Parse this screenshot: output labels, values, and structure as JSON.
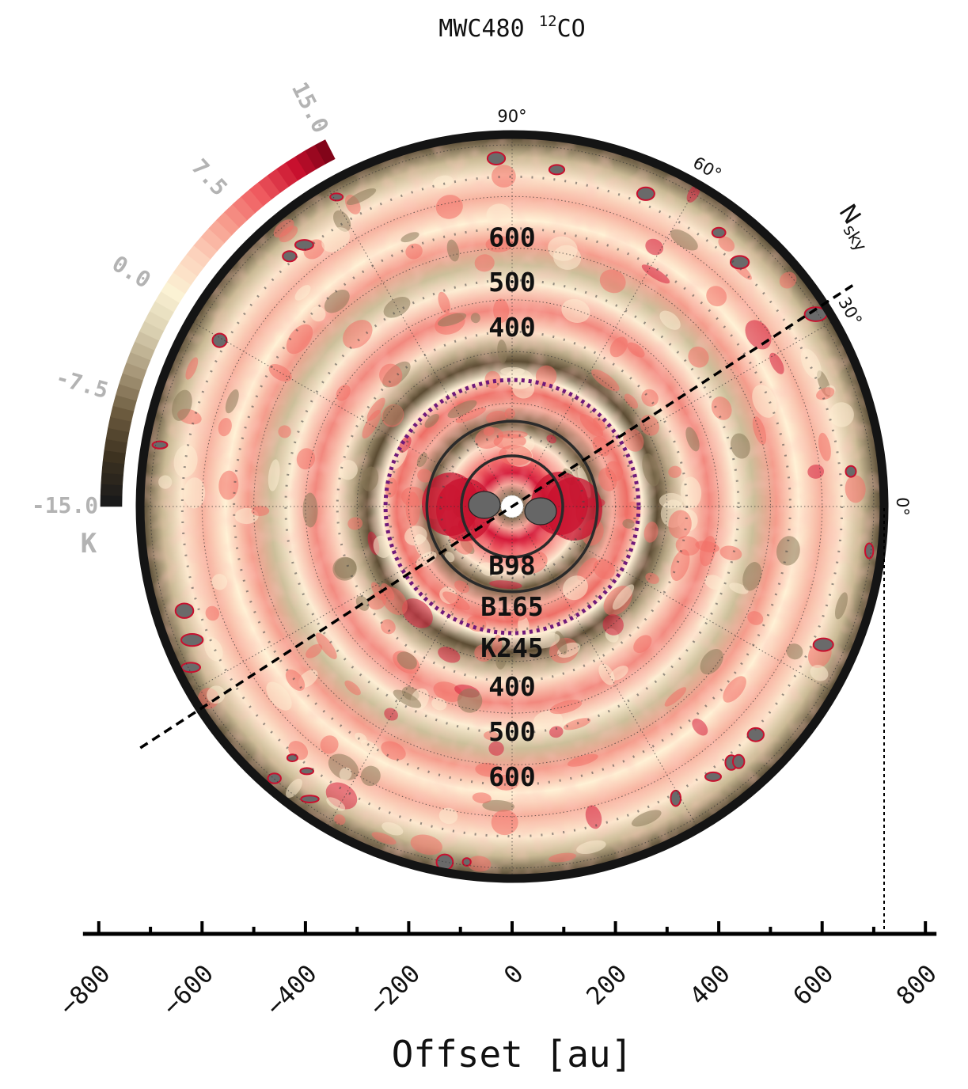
{
  "chart_data": {
    "type": "heatmap",
    "projection": "polar",
    "title": "MWC480 ",
    "title_isotope": "12",
    "title_species": "CO",
    "xlabel": "Offset [au]",
    "x_ticks": [
      -800,
      -600,
      -400,
      -200,
      0,
      200,
      400,
      600,
      800
    ],
    "x_tick_labels": [
      "−800",
      "−600",
      "−400",
      "−200",
      "0",
      "200",
      "400",
      "600",
      "800"
    ],
    "xlim": [
      -800,
      800
    ],
    "disk_radius_au": 720,
    "angle_ticks_deg": [
      0,
      30,
      60,
      90
    ],
    "angle_tick_labels": [
      "0°",
      "30°",
      "60°",
      "90°"
    ],
    "radial_labels_upper": [
      "400",
      "500",
      "600"
    ],
    "radial_labels_lower": [
      "400",
      "500",
      "600"
    ],
    "radial_label_values": [
      400,
      500,
      600
    ],
    "radial_grid_au": [
      100,
      200,
      300,
      400,
      500,
      600,
      700
    ],
    "features": [
      {
        "label": "B98",
        "radius_au": 98,
        "style": "solid"
      },
      {
        "label": "B165",
        "radius_au": 165,
        "style": "solid"
      },
      {
        "label": "K245",
        "radius_au": 245,
        "style": "dotted"
      }
    ],
    "north_label": "N",
    "north_subscript": "sky",
    "north_angle_deg": 33,
    "colorbar": {
      "vmin": -15.0,
      "vmax": 15.0,
      "ticks": [
        -15.0,
        -7.5,
        0.0,
        7.5,
        15.0
      ],
      "tick_labels": [
        "-15.0",
        "-7.5",
        "0.0",
        "7.5",
        "15.0"
      ],
      "unit": "K",
      "colors": [
        "#1a1a1a",
        "#3d3220",
        "#6b5a3e",
        "#a8987a",
        "#d9cfb0",
        "#fbf2d4",
        "#fcd2bc",
        "#f79b8c",
        "#ef5a5f",
        "#c8102e",
        "#6b0012"
      ]
    }
  },
  "colors": {
    "ring_dark": "#2a2a2a",
    "ring_purple": "#6f1a7a",
    "disk_border": "#141414",
    "cb_label": "#b3b3b3"
  }
}
